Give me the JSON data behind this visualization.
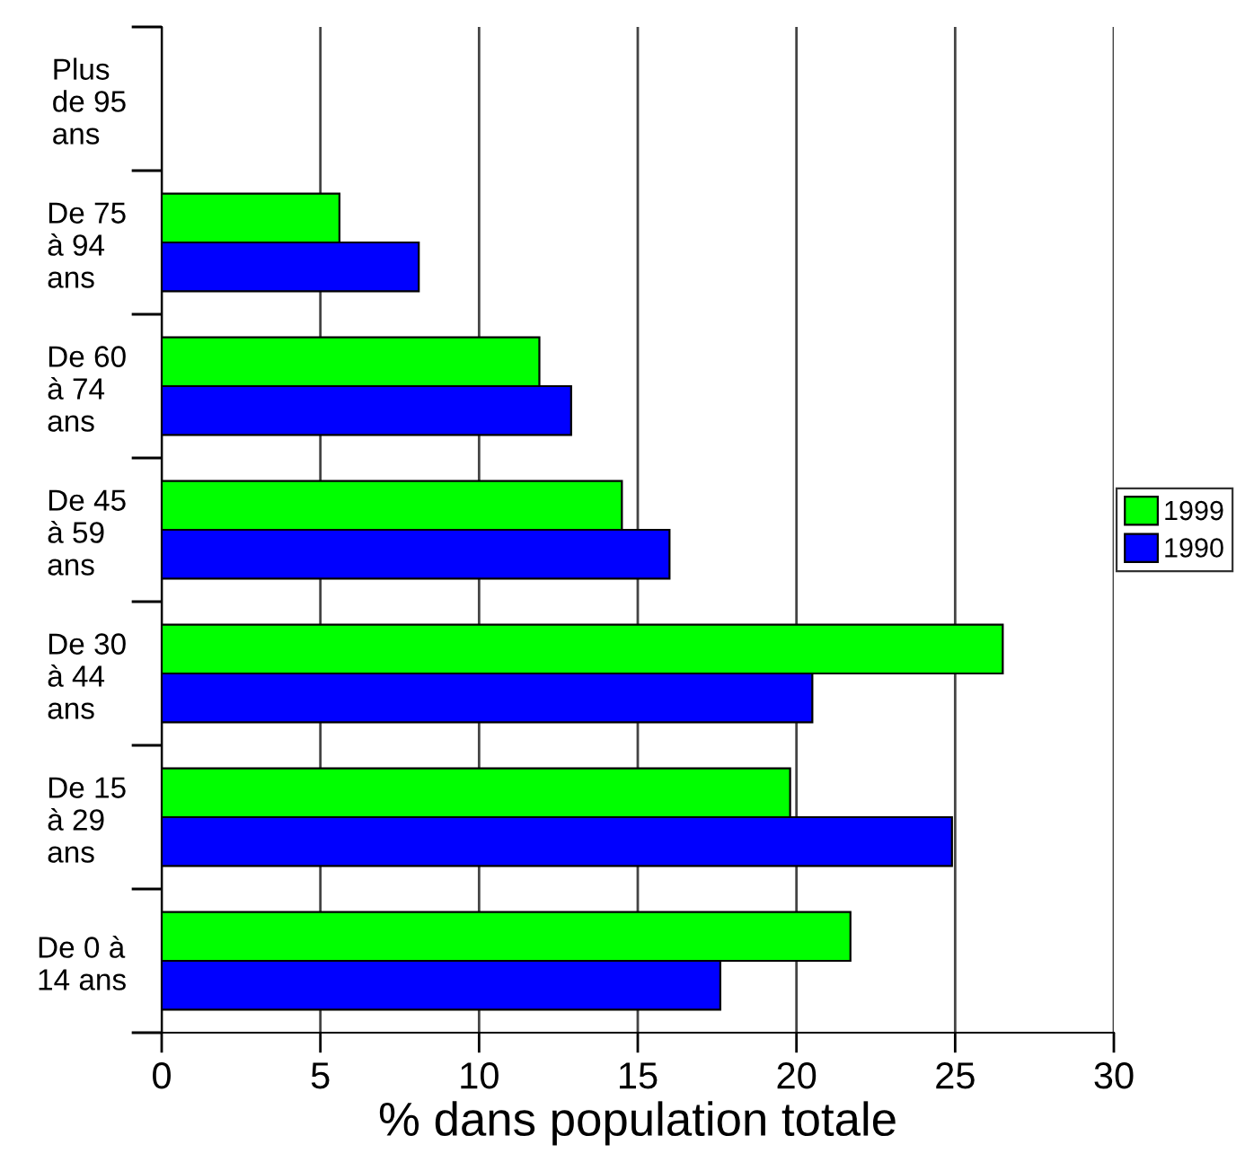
{
  "chart_data": {
    "type": "bar",
    "orientation": "horizontal",
    "xlabel": "% dans population totale",
    "categories": [
      "Plus\nde 95\nans",
      "De 75\nà 94\nans",
      "De 60\nà 74\nans",
      "De 45\nà 59\nans",
      "De 30\nà 44\nans",
      "De 15\nà 29\nans",
      "De 0 à\n14 ans"
    ],
    "series": [
      {
        "name": "1999",
        "color": "#00ff00",
        "values": [
          null,
          5.6,
          11.9,
          14.5,
          26.5,
          19.8,
          21.7
        ]
      },
      {
        "name": "1990",
        "color": "#0000ff",
        "values": [
          null,
          8.1,
          12.9,
          16.0,
          20.5,
          24.9,
          17.6
        ]
      }
    ],
    "xlim": [
      0,
      30
    ],
    "xticks": [
      0,
      5,
      10,
      15,
      20,
      25,
      30
    ],
    "grid": "x",
    "legend": "right"
  }
}
